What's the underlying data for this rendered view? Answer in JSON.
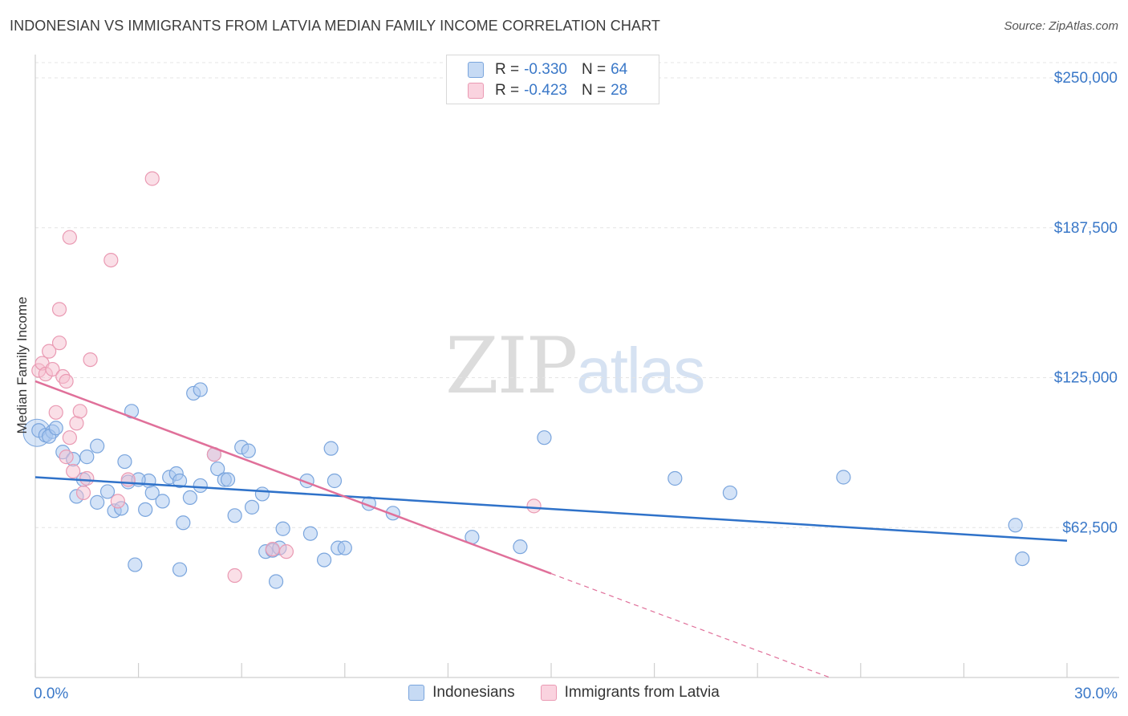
{
  "title": "INDONESIAN VS IMMIGRANTS FROM LATVIA MEDIAN FAMILY INCOME CORRELATION CHART",
  "source": "Source: ZipAtlas.com",
  "watermark": {
    "zip": "ZIP",
    "atlas": "atlas"
  },
  "colors": {
    "blue_fill": "#a9c8ef",
    "blue_stroke": "#7aa5dd",
    "blue_line": "#2f72c9",
    "pink_fill": "#f5bfcf",
    "pink_stroke": "#ea9ab3",
    "pink_line": "#e0709a",
    "axis_text": "#3a78c8",
    "grid": "#e4e4e4"
  },
  "legend": {
    "rows": [
      {
        "r_label": "R =",
        "r_value": "-0.330",
        "n_label": "N =",
        "n_value": "64"
      },
      {
        "r_label": "R =",
        "r_value": "-0.423",
        "n_label": "N =",
        "n_value": "28"
      }
    ]
  },
  "chart_data": {
    "type": "scatter",
    "title": "INDONESIAN VS IMMIGRANTS FROM LATVIA MEDIAN FAMILY INCOME CORRELATION CHART",
    "xlabel": "",
    "ylabel": "Median Family Income",
    "xlim": [
      0,
      30
    ],
    "ylim": [
      0,
      250000
    ],
    "x_tick_labels": [
      "0.0%",
      "30.0%"
    ],
    "y_ticks": [
      62500,
      125000,
      187500,
      250000
    ],
    "y_tick_labels": [
      "$62,500",
      "$125,000",
      "$187,500",
      "$250,000"
    ],
    "grid": true,
    "series": [
      {
        "name": "Indonesians",
        "color": "#a9c8ef",
        "trend": {
          "x": [
            0,
            30
          ],
          "y": [
            83500,
            57000
          ],
          "dashed_from": null
        },
        "points": [
          [
            0.1,
            103000
          ],
          [
            0.3,
            101000
          ],
          [
            0.5,
            102500
          ],
          [
            0.4,
            100500
          ],
          [
            0.6,
            104000
          ],
          [
            0.8,
            94000
          ],
          [
            1.1,
            91000
          ],
          [
            1.5,
            92000
          ],
          [
            1.8,
            96500
          ],
          [
            1.4,
            82500
          ],
          [
            2.1,
            77500
          ],
          [
            1.8,
            73000
          ],
          [
            2.3,
            69500
          ],
          [
            2.5,
            70500
          ],
          [
            2.6,
            90000
          ],
          [
            2.7,
            81500
          ],
          [
            2.8,
            111000
          ],
          [
            3.2,
            70000
          ],
          [
            3.3,
            82000
          ],
          [
            3.4,
            77000
          ],
          [
            3.7,
            73500
          ],
          [
            3.9,
            83500
          ],
          [
            4.1,
            85000
          ],
          [
            4.2,
            82000
          ],
          [
            4.3,
            64500
          ],
          [
            4.5,
            75000
          ],
          [
            4.6,
            118500
          ],
          [
            4.8,
            120000
          ],
          [
            4.8,
            80000
          ],
          [
            5.2,
            93000
          ],
          [
            5.3,
            87000
          ],
          [
            5.5,
            82500
          ],
          [
            5.8,
            67500
          ],
          [
            6.0,
            96000
          ],
          [
            6.2,
            94500
          ],
          [
            6.3,
            71000
          ],
          [
            6.6,
            76500
          ],
          [
            6.7,
            52500
          ],
          [
            6.9,
            53000
          ],
          [
            7.0,
            40000
          ],
          [
            7.1,
            54000
          ],
          [
            7.2,
            62000
          ],
          [
            7.9,
            82000
          ],
          [
            8.0,
            60000
          ],
          [
            8.4,
            49000
          ],
          [
            8.6,
            95500
          ],
          [
            8.7,
            82000
          ],
          [
            8.8,
            54000
          ],
          [
            9.0,
            54000
          ],
          [
            9.7,
            72500
          ],
          [
            10.4,
            68500
          ],
          [
            12.7,
            58500
          ],
          [
            14.1,
            54500
          ],
          [
            14.8,
            100000
          ],
          [
            18.6,
            83000
          ],
          [
            20.2,
            77000
          ],
          [
            23.5,
            83500
          ],
          [
            28.5,
            63500
          ],
          [
            28.7,
            49500
          ],
          [
            2.9,
            47000
          ],
          [
            4.2,
            45000
          ],
          [
            1.2,
            75500
          ],
          [
            3.0,
            82500
          ],
          [
            5.6,
            82500
          ]
        ]
      },
      {
        "name": "Immigrants from Latvia",
        "color": "#f5bfcf",
        "trend": {
          "x": [
            0,
            23.1
          ],
          "y": [
            123500,
            0
          ],
          "dashed_from": 15.0
        },
        "points": [
          [
            0.1,
            128000
          ],
          [
            0.2,
            131000
          ],
          [
            0.3,
            126500
          ],
          [
            0.4,
            136000
          ],
          [
            0.5,
            128500
          ],
          [
            0.6,
            110500
          ],
          [
            0.7,
            139500
          ],
          [
            0.7,
            153500
          ],
          [
            0.8,
            125500
          ],
          [
            0.9,
            92000
          ],
          [
            0.9,
            123500
          ],
          [
            1.0,
            100000
          ],
          [
            1.0,
            183500
          ],
          [
            1.1,
            86000
          ],
          [
            1.2,
            106000
          ],
          [
            1.3,
            111000
          ],
          [
            1.4,
            77000
          ],
          [
            1.5,
            83000
          ],
          [
            1.6,
            132500
          ],
          [
            2.2,
            174000
          ],
          [
            2.4,
            73500
          ],
          [
            2.7,
            82500
          ],
          [
            3.4,
            208000
          ],
          [
            5.2,
            93000
          ],
          [
            5.8,
            42500
          ],
          [
            6.9,
            53500
          ],
          [
            7.3,
            52500
          ],
          [
            14.5,
            71500
          ]
        ]
      }
    ]
  },
  "bottom_legend": [
    {
      "label": "Indonesians"
    },
    {
      "label": "Immigrants from Latvia"
    }
  ]
}
